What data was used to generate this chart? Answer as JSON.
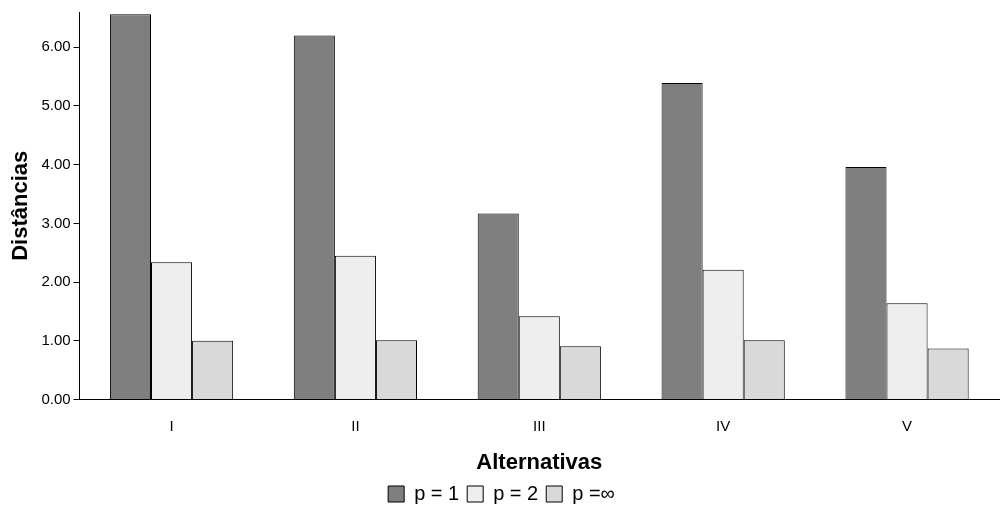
{
  "chart_data": {
    "type": "bar",
    "xlabel": "Alternativas",
    "ylabel": "Distâncias",
    "categories": [
      "I",
      "II",
      "III",
      "IV",
      "V"
    ],
    "series": [
      {
        "name": "p = 1",
        "color": "#7f7f7f",
        "values": [
          6.56,
          6.2,
          3.17,
          5.39,
          3.96
        ]
      },
      {
        "name": "p = 2",
        "color": "#eeeeee",
        "values": [
          2.34,
          2.45,
          1.42,
          2.21,
          1.64
        ]
      },
      {
        "name": "p =∞",
        "color": "#d9d9d9",
        "values": [
          1.0,
          1.01,
          0.91,
          1.01,
          0.87
        ]
      }
    ],
    "ylim": [
      0,
      6.6
    ],
    "yticks": [
      {
        "value": 0,
        "label": "0.00"
      },
      {
        "value": 1,
        "label": "1.00"
      },
      {
        "value": 2,
        "label": "2.00"
      },
      {
        "value": 3,
        "label": "3.00"
      },
      {
        "value": 4,
        "label": "4.00"
      },
      {
        "value": 5,
        "label": "5.00"
      },
      {
        "value": 6,
        "label": "6.00"
      }
    ],
    "grid": false,
    "legend": "bottom"
  }
}
